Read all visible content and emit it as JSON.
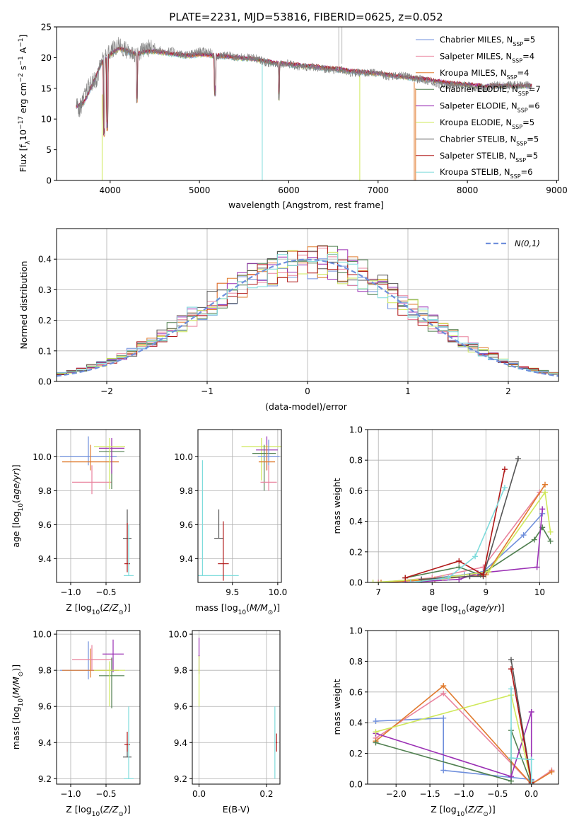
{
  "figure": {
    "title": "PLATE=2231, MJD=53816, FIBERID=0625, z=0.052"
  },
  "series": [
    {
      "name": "Chabrier MILES, N$_{SSP}$=5",
      "label_main": "Chabrier MILES, N",
      "label_sub": "SSP",
      "label_tail": "=5",
      "color": "#6f8fdc"
    },
    {
      "name": "Salpeter MILES, N$_{SSP}$=4",
      "label_main": "Salpeter MILES, N",
      "label_sub": "SSP",
      "label_tail": "=4",
      "color": "#e9839e"
    },
    {
      "name": "Kroupa MILES, N$_{SSP}$=4",
      "label_main": "Kroupa MILES, N",
      "label_sub": "SSP",
      "label_tail": "=4",
      "color": "#e07a2d"
    },
    {
      "name": "Chabrier ELODIE, N$_{SSP}$=7",
      "label_main": "Chabrier ELODIE, N",
      "label_sub": "SSP",
      "label_tail": "=7",
      "color": "#4f7f4f"
    },
    {
      "name": "Salpeter ELODIE, N$_{SSP}$=6",
      "label_main": "Salpeter ELODIE, N",
      "label_sub": "SSP",
      "label_tail": "=6",
      "color": "#9a2fb4"
    },
    {
      "name": "Kroupa ELODIE, N$_{SSP}$=5",
      "label_main": "Kroupa ELODIE, N",
      "label_sub": "SSP",
      "label_tail": "=5",
      "color": "#cfe85a"
    },
    {
      "name": "Chabrier STELIB, N$_{SSP}$=5",
      "label_main": "Chabrier STELIB, N",
      "label_sub": "SSP",
      "label_tail": "=5",
      "color": "#555555"
    },
    {
      "name": "Salpeter STELIB, N$_{SSP}$=5",
      "label_main": "Salpeter STELIB, N",
      "label_sub": "SSP",
      "label_tail": "=5",
      "color": "#b01818"
    },
    {
      "name": "Kroupa STELIB, N$_{SSP}$=6",
      "label_main": "Kroupa STELIB, N",
      "label_sub": "SSP",
      "label_tail": "=6",
      "color": "#7fdcdc"
    }
  ],
  "chart_data": [
    {
      "id": "spectrum",
      "type": "line",
      "xlabel": "wavelength [Angstrom, rest frame]",
      "ylabel": "Flux [f$_\\lambda$10$^{-17}$ erg cm$^{-2}$ s$^{-1}$ A$^{-1}$]",
      "xlim": [
        3400,
        9020
      ],
      "ylim": [
        0,
        25
      ],
      "xticks": [
        4000,
        5000,
        6000,
        7000,
        8000,
        9000
      ],
      "yticks": [
        0,
        5,
        10,
        15,
        20,
        25
      ],
      "legend": "upper right",
      "data_trace": {
        "name": "data",
        "color": "#808080",
        "x": [
          3620,
          3650,
          3700,
          3750,
          3800,
          3850,
          3900,
          3950,
          4000,
          4050,
          4100,
          4150,
          4200,
          4300,
          4400,
          4500,
          4600,
          4700,
          4800,
          4900,
          5000,
          5100,
          5200,
          5300,
          5400,
          5500,
          5600,
          5700,
          5800,
          5900,
          6000,
          6100,
          6200,
          6300,
          6400,
          6500,
          6600,
          6700,
          6800,
          6900,
          7000,
          7100,
          7200,
          7300,
          7400,
          7500,
          7600,
          7700,
          7800,
          7900,
          8000,
          8100,
          8200,
          8300,
          8400,
          8500,
          8600,
          8700
        ],
        "y": [
          12.5,
          11.5,
          13,
          15,
          16,
          16.5,
          19.5,
          20,
          21,
          21.5,
          22,
          21.5,
          21,
          20.5,
          21.5,
          21.5,
          21,
          21,
          20.5,
          20.5,
          21,
          21,
          20,
          20.5,
          20,
          20,
          20,
          19.5,
          19,
          19,
          19,
          18.5,
          18.5,
          18.5,
          18,
          18,
          18,
          17.5,
          17.5,
          17.5,
          17.5,
          17,
          17,
          17,
          16.5,
          16.5,
          16,
          15.5,
          15.5,
          15.5,
          15.5,
          15,
          15,
          15.5,
          15.5,
          15.5,
          15.5,
          15.5
        ]
      },
      "model_trace": {
        "x": [
          3620,
          3700,
          3800,
          3900,
          4000,
          4100,
          4200,
          4300,
          4400,
          4500,
          4600,
          4700,
          4800,
          4900,
          5000,
          5200,
          5400,
          5600,
          5800,
          6000,
          6200,
          6400,
          6600,
          6800,
          7000,
          7200,
          7400,
          7600,
          7800,
          8000,
          8200,
          8400,
          8600,
          8700
        ],
        "y": [
          12,
          12.5,
          15.5,
          19,
          20.5,
          21.5,
          21,
          20.5,
          21,
          21,
          20.8,
          20.6,
          20.4,
          20.3,
          20.5,
          20.3,
          20,
          19.8,
          19.2,
          18.9,
          18.6,
          18.3,
          18,
          17.6,
          17.4,
          17,
          16.7,
          16.3,
          15.8,
          15.6,
          15.3,
          15.4,
          15.4,
          15.4
        ]
      },
      "dips": [
        {
          "x": 3933,
          "y": 7.0
        },
        {
          "x": 3968,
          "y": 8.0
        },
        {
          "x": 4300,
          "y": 12.5
        },
        {
          "x": 5175,
          "y": 13.5
        },
        {
          "x": 5890,
          "y": 13.0
        }
      ]
    },
    {
      "id": "residuals",
      "type": "step",
      "xlabel": "(data-model)/error",
      "ylabel": "Normed distribution",
      "xlim": [
        -2.5,
        2.5
      ],
      "ylim": [
        0,
        0.5
      ],
      "xticks": [
        -2,
        -1,
        0,
        1,
        2
      ],
      "yticks": [
        0.0,
        0.1,
        0.2,
        0.3,
        0.4
      ],
      "normal_label": "N(0,1)",
      "normal_color": "#6f8fdc",
      "bin_width": 0.1
    },
    {
      "id": "age-vs-Z",
      "type": "errorbar",
      "xlabel": "Z [log$_{10}$(Z/Z$_\\odot$)]",
      "ylabel": "age  [log$_{10}$(age/yr)]",
      "xlim": [
        -1.2,
        -0.02
      ],
      "ylim": [
        9.26,
        10.16
      ],
      "xticks": [
        -1.0,
        -0.5
      ],
      "yticks": [
        9.4,
        9.6,
        9.8,
        10.0
      ]
    },
    {
      "id": "age-vs-mass",
      "type": "errorbar",
      "xlabel": "mass [log$_{10}$(M/M$_\\odot$)]",
      "ylabel": "",
      "xlim": [
        9.12,
        10.04
      ],
      "ylim": [
        9.26,
        10.16
      ],
      "xticks": [
        9.5,
        10.0
      ],
      "yticks": [
        9.4,
        9.6,
        9.8,
        10.0
      ]
    },
    {
      "id": "massweight-vs-age",
      "type": "line",
      "xlabel": "age  [log$_{10}$(age/yr)]",
      "ylabel": "mass weight",
      "xlim": [
        6.8,
        10.35
      ],
      "ylim": [
        0,
        1.0
      ],
      "xticks": [
        7,
        8,
        9,
        10
      ],
      "yticks": [
        0.0,
        0.2,
        0.4,
        0.6,
        0.8,
        1.0
      ],
      "series": [
        {
          "x": [
            7.0,
            7.8,
            8.6,
            8.95,
            9.7,
            10.05
          ],
          "y": [
            0.0,
            0.02,
            0.05,
            0.07,
            0.31,
            0.45
          ]
        },
        {
          "x": [
            7.0,
            8.0,
            8.95,
            10.0
          ],
          "y": [
            0.0,
            0.03,
            0.1,
            0.59
          ]
        },
        {
          "x": [
            7.05,
            8.05,
            9.0,
            10.1
          ],
          "y": [
            0.0,
            0.02,
            0.05,
            0.64
          ]
        },
        {
          "x": [
            7.5,
            8.5,
            8.9,
            9.9,
            10.05,
            10.2
          ],
          "y": [
            0.03,
            0.1,
            0.05,
            0.28,
            0.36,
            0.27
          ]
        },
        {
          "x": [
            7.5,
            8.5,
            8.85,
            9.95,
            10.05
          ],
          "y": [
            0.0,
            0.02,
            0.06,
            0.1,
            0.48
          ]
        },
        {
          "x": [
            6.9,
            8.2,
            9.05,
            10.1,
            10.2
          ],
          "y": [
            0.0,
            0.03,
            0.07,
            0.59,
            0.33
          ]
        },
        {
          "x": [
            7.8,
            8.7,
            8.95,
            9.6
          ],
          "y": [
            0.02,
            0.04,
            0.04,
            0.81
          ]
        },
        {
          "x": [
            7.5,
            8.5,
            8.95,
            9.35
          ],
          "y": [
            0.03,
            0.14,
            0.05,
            0.74
          ]
        },
        {
          "x": [
            7.6,
            8.3,
            8.8,
            9.35
          ],
          "y": [
            0.0,
            0.03,
            0.17,
            0.62
          ]
        }
      ]
    },
    {
      "id": "mass-vs-Z",
      "type": "errorbar",
      "xlabel": "Z [log$_{10}$(Z/Z$_\\odot$)]",
      "ylabel": "mass [log$_{10}$(M/M$_\\odot$)]",
      "xlim": [
        -1.2,
        -0.02
      ],
      "ylim": [
        9.17,
        10.02
      ],
      "xticks": [
        -1.0,
        -0.5
      ],
      "yticks": [
        9.2,
        9.4,
        9.6,
        9.8,
        10.0
      ]
    },
    {
      "id": "mass-vs-ebv",
      "type": "errorbar",
      "xlabel": "E(B-V)",
      "ylabel": "",
      "xlim": [
        -0.02,
        0.24
      ],
      "ylim": [
        9.17,
        10.02
      ],
      "xticks": [
        0.0,
        0.2
      ],
      "yticks": [
        9.2,
        9.4,
        9.6,
        9.8,
        10.0
      ]
    },
    {
      "id": "massweight-vs-Z",
      "type": "line",
      "xlabel": "Z [log$_{10}$(Z/Z$_\\odot$)]",
      "ylabel": "mass weight",
      "xlim": [
        -2.42,
        0.4
      ],
      "ylim": [
        0,
        1.0
      ],
      "xticks": [
        -2.0,
        -1.5,
        -1.0,
        -0.5,
        0.0
      ],
      "yticks": [
        0.0,
        0.2,
        0.4,
        0.6,
        0.8,
        1.0
      ],
      "series": [
        {
          "x": [
            -2.3,
            -1.3,
            -1.3,
            0.0,
            0.0
          ],
          "y": [
            0.41,
            0.43,
            0.09,
            0.03,
            0.0
          ]
        },
        {
          "x": [
            -2.3,
            -1.3,
            0.0,
            0.3
          ],
          "y": [
            0.3,
            0.59,
            0.0,
            0.09
          ]
        },
        {
          "x": [
            -2.3,
            -1.3,
            0.0,
            0.3
          ],
          "y": [
            0.28,
            0.64,
            0.0,
            0.08
          ]
        },
        {
          "x": [
            -2.3,
            -0.3,
            -0.3,
            0.0
          ],
          "y": [
            0.27,
            0.02,
            0.35,
            0.0
          ]
        },
        {
          "x": [
            -2.3,
            -0.3,
            0.0,
            0.0
          ],
          "y": [
            0.33,
            0.05,
            0.47,
            0.0
          ]
        },
        {
          "x": [
            -2.3,
            -0.3,
            0.0
          ],
          "y": [
            0.34,
            0.58,
            0.01
          ]
        },
        {
          "x": [
            -0.3,
            0.0
          ],
          "y": [
            0.81,
            0.02
          ]
        },
        {
          "x": [
            -0.3,
            0.0
          ],
          "y": [
            0.75,
            0.01
          ]
        },
        {
          "x": [
            -0.3,
            -0.3,
            0.0,
            0.0
          ],
          "y": [
            0.62,
            0.17,
            0.16,
            0.0
          ]
        }
      ]
    }
  ]
}
